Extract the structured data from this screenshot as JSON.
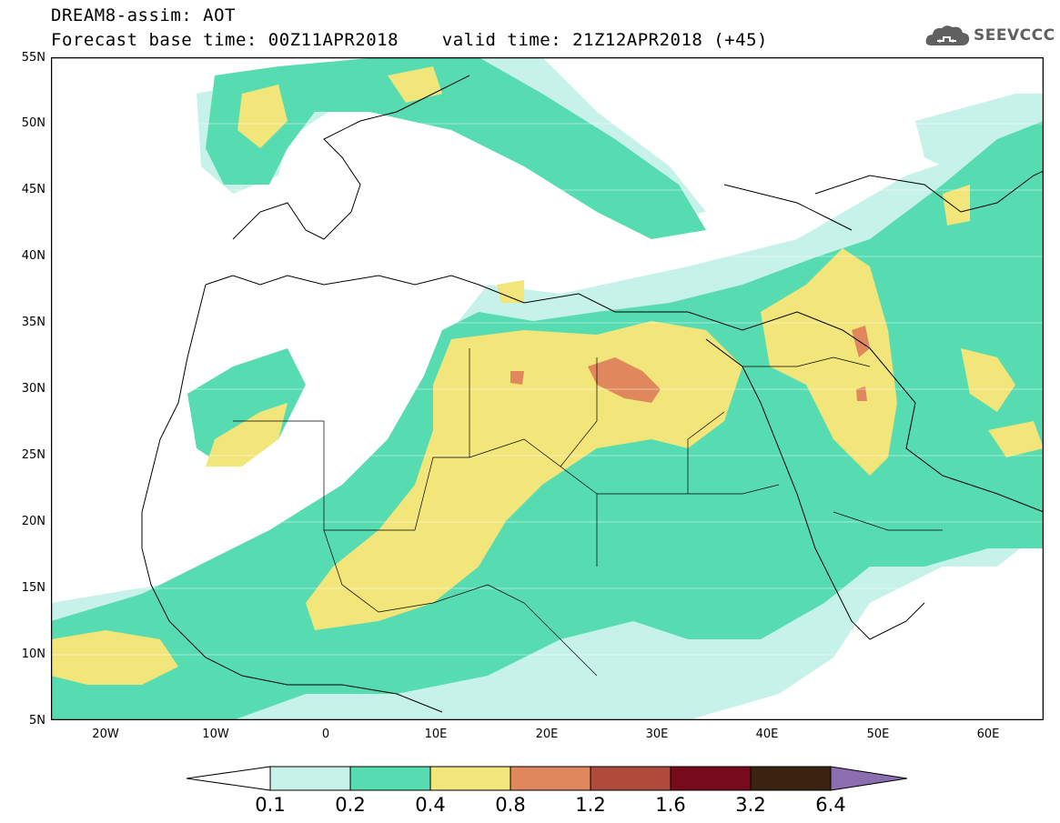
{
  "header": {
    "title_line1": "DREAM8-assim: AOT",
    "title_line2": "Forecast base time: 00Z11APR2018    valid time: 21Z12APR2018 (+45)"
  },
  "logo": {
    "text": "SEEVCCC",
    "icon": "cloud-icon",
    "color": "#606060"
  },
  "axes": {
    "lat_labels": [
      "55N",
      "50N",
      "45N",
      "40N",
      "35N",
      "30N",
      "25N",
      "20N",
      "15N",
      "10N",
      "5N"
    ],
    "lon_labels": [
      "20W",
      "10W",
      "0",
      "10E",
      "20E",
      "30E",
      "40E",
      "50E",
      "60E"
    ]
  },
  "colorbar": {
    "levels": [
      "0.1",
      "0.2",
      "0.4",
      "0.8",
      "1.2",
      "1.6",
      "3.2",
      "6.4"
    ],
    "colors": [
      "#ffffff",
      "#c6f2e9",
      "#57dcb1",
      "#f2e57a",
      "#e0875e",
      "#b04a3a",
      "#780a1e",
      "#3a2410",
      "#8c6eb0"
    ]
  },
  "map": {
    "lon_range": [
      -25,
      65
    ],
    "lat_range": [
      5,
      55
    ],
    "grid": true,
    "grid_color": "#ffffff",
    "background": "#ffffff"
  }
}
